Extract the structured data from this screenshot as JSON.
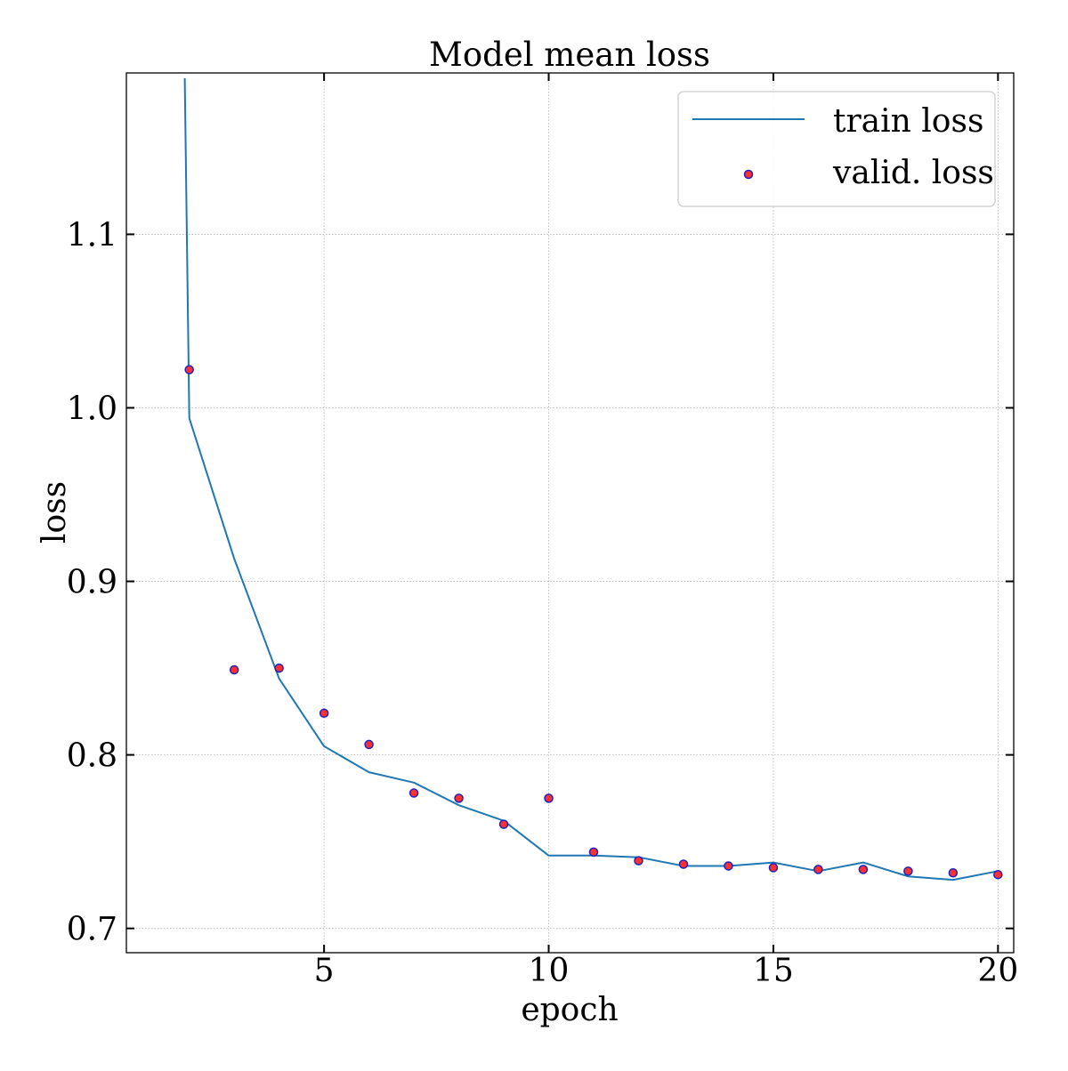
{
  "chart_data": {
    "type": "line",
    "title": "Model mean loss",
    "xlabel": "epoch",
    "ylabel": "loss",
    "xlim": [
      0.6,
      20.35
    ],
    "ylim": [
      0.686,
      1.193
    ],
    "xticks": [
      5,
      10,
      15,
      20
    ],
    "xtick_labels": [
      "5",
      "10",
      "15",
      "20"
    ],
    "yticks": [
      0.7,
      0.8,
      0.9,
      1.0,
      1.1
    ],
    "ytick_labels": [
      "0.7",
      "0.8",
      "0.9",
      "1.0",
      "1.1"
    ],
    "grid": true,
    "legend_position": "top-right",
    "series": [
      {
        "name": "train loss",
        "style": "line",
        "color": "#1f77b4",
        "x": [
          1.9,
          2,
          3,
          4,
          5,
          6,
          7,
          8,
          9,
          10,
          11,
          12,
          13,
          14,
          15,
          16,
          17,
          18,
          19,
          20
        ],
        "values": [
          1.19,
          0.994,
          0.913,
          0.844,
          0.805,
          0.79,
          0.784,
          0.771,
          0.762,
          0.742,
          0.742,
          0.741,
          0.736,
          0.736,
          0.738,
          0.733,
          0.738,
          0.73,
          0.728,
          0.733
        ]
      },
      {
        "name": "valid. loss",
        "style": "scatter",
        "color": "#ff3030",
        "edge_color": "#2020c0",
        "x": [
          2,
          3,
          4,
          5,
          6,
          7,
          8,
          9,
          10,
          11,
          12,
          13,
          14,
          15,
          16,
          17,
          18,
          19,
          20
        ],
        "values": [
          1.022,
          0.849,
          0.85,
          0.824,
          0.806,
          0.778,
          0.775,
          0.76,
          0.775,
          0.744,
          0.739,
          0.737,
          0.736,
          0.735,
          0.734,
          0.734,
          0.733,
          0.732,
          0.731
        ]
      }
    ]
  }
}
